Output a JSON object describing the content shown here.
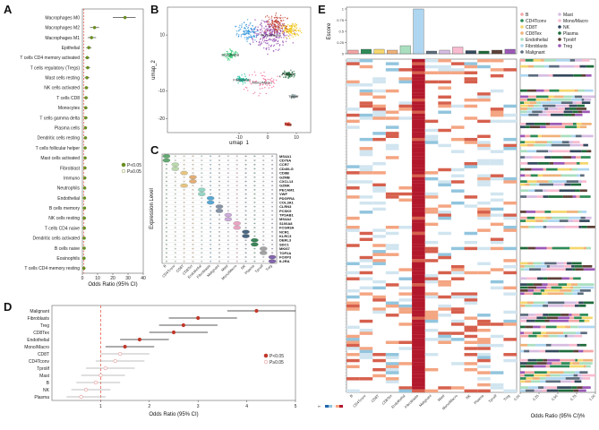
{
  "panels": {
    "a": "A",
    "b": "B",
    "c": "C",
    "d": "D",
    "e": "E"
  },
  "legend": {
    "sig": "P<0.05",
    "ns": "P≥0.05"
  },
  "colors": {
    "sig": "#6b8e23",
    "ns_fill": "#ffffff",
    "ns_stroke": "#9aa86a",
    "d_sig": "#c0392b",
    "d_ns": "#e89a9a",
    "ref": "#e74c3c",
    "ci": "#222222"
  },
  "chart_data": [
    {
      "id": "A",
      "type": "scatter",
      "subtype": "forest",
      "xlabel": "Odds Ratio (95% CI)",
      "xlim": [
        0,
        40
      ],
      "xticks": [
        0,
        10,
        20,
        30,
        40
      ],
      "ref_line": 1,
      "categories": [
        "Macrophages M0",
        "Macrophages M2",
        "Macrophages M1",
        "Epithelial",
        "T cells CD4 memory activated",
        "T cells regulatory (Tregs)",
        "Mast cells resting",
        "NK cells activated",
        "T cells CD8",
        "Monocytes",
        "T cells gamma delta",
        "Plasma cells",
        "Dendritic cells resting",
        "T cells follicular helper",
        "Mast cells activated",
        "Fibroblast",
        "Immuno",
        "Neutrophils",
        "Endothelial",
        "B cells memory",
        "NK cells resting",
        "T cells CD4 naive",
        "Dendritic cells activated",
        "B cells naive",
        "Eosinophils",
        "T cells CD4 memory resting"
      ],
      "values": [
        28,
        8,
        6,
        4.2,
        3.2,
        3.5,
        3,
        2.6,
        2.4,
        2.2,
        2.2,
        2,
        2,
        1.8,
        1.8,
        1.7,
        1.6,
        1.5,
        1.4,
        1.4,
        1.3,
        1.3,
        1.2,
        1.2,
        1.1,
        1.0
      ],
      "ci_low": [
        20,
        5,
        3.5,
        2.5,
        1.8,
        2.0,
        1.5,
        1.4,
        1.2,
        1.1,
        1.1,
        1.0,
        1.0,
        0.9,
        0.9,
        0.8,
        0.8,
        0.7,
        0.7,
        0.7,
        0.6,
        0.6,
        0.6,
        0.6,
        0.5,
        0.5
      ],
      "ci_high": [
        35,
        11,
        9,
        6,
        4.8,
        5,
        4.6,
        4,
        3.7,
        3.4,
        3.4,
        3.1,
        3.1,
        2.8,
        2.8,
        2.7,
        2.5,
        2.4,
        2.2,
        2.2,
        2.1,
        2.1,
        1.9,
        1.9,
        1.8,
        1.6
      ],
      "significant": [
        true,
        true,
        true,
        true,
        true,
        true,
        true,
        true,
        true,
        true,
        true,
        true,
        true,
        true,
        true,
        true,
        true,
        true,
        true,
        true,
        true,
        true,
        true,
        true,
        true,
        true
      ],
      "legend": [
        "P<0.05",
        "P≥0.05"
      ]
    },
    {
      "id": "B",
      "type": "scatter",
      "subtype": "umap",
      "xlabel": "umap_1",
      "ylabel": "umap_2",
      "xticks": [
        -10,
        0,
        10
      ],
      "yticks": [
        10,
        -10,
        -20
      ],
      "clusters": [
        {
          "name": "Mono/Macro",
          "x": 1,
          "y": 10,
          "color": "#8e44ad"
        },
        {
          "name": "Endothelial",
          "x": -13,
          "y": 3,
          "color": "#2ecc71"
        },
        {
          "name": "Fibroblasts",
          "x": -9,
          "y": -6,
          "color": "#1abc9c"
        },
        {
          "name": "Mono/Macro",
          "x": -2,
          "y": -7,
          "color": "#f06292"
        },
        {
          "name": "Plasma",
          "x": 7,
          "y": -4,
          "color": "#1e6b3a"
        },
        {
          "name": "Tprolif",
          "x": 9,
          "y": -12,
          "color": "#95a5a6"
        },
        {
          "name": "Treg",
          "x": 7,
          "y": -22,
          "color": "#e74c3c"
        },
        {
          "name": "CD8T",
          "x": -7,
          "y": 11,
          "color": "#3498db"
        },
        {
          "name": "NK",
          "x": 8,
          "y": 12,
          "color": "#f1c40f"
        },
        {
          "name": "Malignant",
          "x": 3,
          "y": 14,
          "color": "#c0392b"
        }
      ]
    },
    {
      "id": "C",
      "type": "scatter",
      "subtype": "violin",
      "ylabel": "Expression Level",
      "categories": [
        "B",
        "CD4Tconv",
        "CD8T",
        "CD8Tex",
        "Endothelial",
        "Fibroblasts",
        "Malignant",
        "Mast",
        "Mono/Macro",
        "NK",
        "Plasma",
        "Tprolif",
        "Treg"
      ],
      "genes": [
        "MS4A1",
        "CD79A",
        "CCR7",
        "CD40LG",
        "CD8B",
        "GZMB",
        "CXCL13",
        "GZMK",
        "PECAM1",
        "VWF",
        "PDGFRA",
        "COL3A1",
        "CLRN3",
        "PCSK9",
        "TPSAB1",
        "MS4A2",
        "S100A8",
        "FCGR3A",
        "NCR1",
        "KLRC3",
        "DERL3",
        "SDC1",
        "MKI67",
        "TOP2A",
        "FOXP3",
        "IL2RA"
      ]
    },
    {
      "id": "D",
      "type": "scatter",
      "subtype": "forest",
      "xlabel": "Odds Ratio (95% CI)",
      "xlim": [
        0,
        5
      ],
      "xticks": [
        1,
        2,
        3,
        4,
        5
      ],
      "ref_line": 1,
      "categories": [
        "Malignant",
        "Fibroblasts",
        "Treg",
        "CD8Tex",
        "Endothelial",
        "Mono/Macro",
        "CD8T",
        "CD4Tconv",
        "Tprolif",
        "Mast",
        "B",
        "NK",
        "Plasma"
      ],
      "values": [
        4.2,
        3.0,
        2.7,
        2.5,
        1.8,
        1.5,
        1.4,
        1.3,
        1.1,
        1.0,
        0.9,
        0.7,
        0.6
      ],
      "ci_low": [
        3.6,
        2.4,
        2.2,
        2.0,
        1.4,
        1.1,
        1.0,
        0.9,
        0.7,
        0.6,
        0.5,
        0.4,
        0.3
      ],
      "ci_high": [
        5.0,
        3.8,
        3.4,
        3.2,
        2.4,
        2.1,
        2.0,
        1.9,
        1.7,
        1.5,
        1.4,
        1.2,
        1.1
      ],
      "significant": [
        true,
        true,
        true,
        true,
        true,
        true,
        false,
        false,
        false,
        false,
        false,
        false,
        false
      ],
      "legend": [
        "P<0.05",
        "P≥0.05"
      ]
    },
    {
      "id": "E",
      "type": "heatmap",
      "bar_ylabel": "Escore",
      "bar_yticks": [
        0,
        0.25,
        0.5,
        0.75,
        1.0
      ],
      "categories": [
        "B",
        "CD4Tconv",
        "CD8T",
        "CD8Tex",
        "Endothelial",
        "Fibroblasts",
        "Malignant",
        "Mast",
        "Mono/Macro",
        "NK",
        "Plasma",
        "Tprolif",
        "Treg"
      ],
      "escore": [
        0.08,
        0.1,
        0.1,
        0.08,
        0.18,
        1.0,
        0.06,
        0.08,
        0.15,
        0.07,
        0.06,
        0.08,
        0.1
      ],
      "bar_colors": [
        "#f4a6a6",
        "#2e8b57",
        "#f5d76e",
        "#f0b27a",
        "#a9dfbf",
        "#aed6f1",
        "#5d6d7e",
        "#d7bde2",
        "#f8bbd0",
        "#34495e",
        "#1e6b3a",
        "#5d4037",
        "#9b59b6"
      ],
      "side_xlabel": "Odds Ratio (95% CI)%",
      "side_xticks": [
        "0.00",
        "0.25",
        "0.50",
        "0.75",
        "1.00"
      ],
      "scale_label": "Scale",
      "legend": [
        "B",
        "CD4Tconv",
        "CD8T",
        "CD8Tex",
        "Endothelial",
        "Fibroblasts",
        "Malignant",
        "Mast",
        "Mono/Macro",
        "NK",
        "Plasma",
        "Tprolif",
        "Treg"
      ]
    }
  ]
}
